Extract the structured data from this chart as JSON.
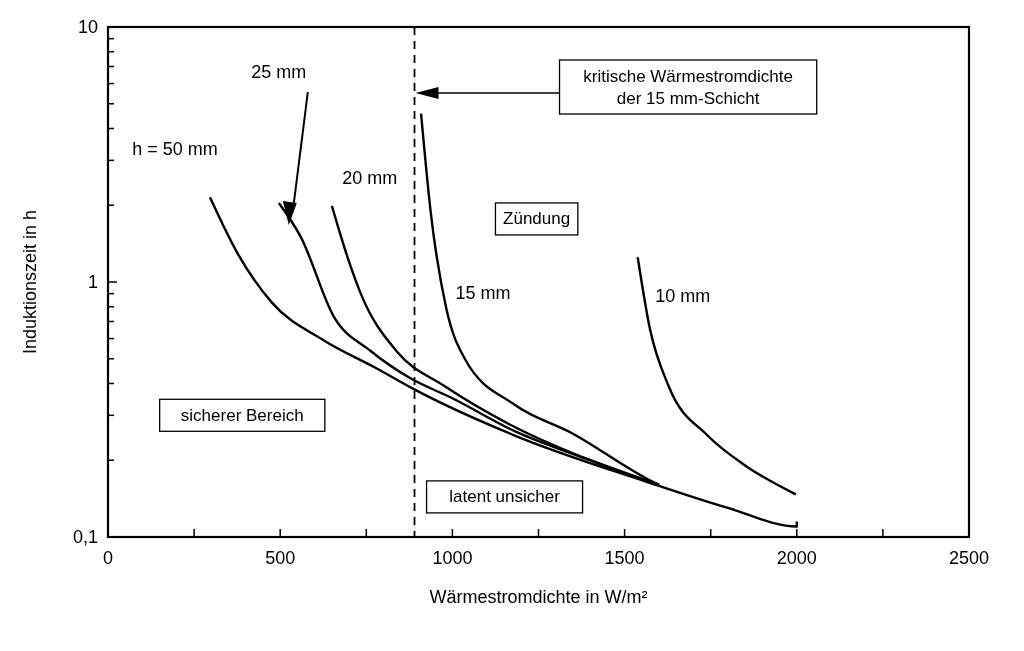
{
  "chart_data": {
    "type": "line",
    "xlabel": "Wärmestromdichte in W/m²",
    "ylabel": "Induktionszeit in h",
    "log": "y",
    "grid": false,
    "line_style": "solid",
    "xlim": [
      0,
      2500
    ],
    "xticks": [
      0,
      {
        "value": 250,
        "label": null
      },
      500,
      {
        "value": 750,
        "label": null
      },
      1000,
      {
        "value": 1250,
        "label": null
      },
      1500,
      {
        "value": 1750,
        "label": null
      },
      2000,
      {
        "value": 2250,
        "label": null
      },
      2500
    ],
    "ylim": [
      0.1,
      10
    ],
    "yticks": [
      {
        "value": 0.1,
        "label": "0,1"
      },
      {
        "value": 0.2,
        "label": null
      },
      {
        "value": 0.3,
        "label": null
      },
      {
        "value": 0.4,
        "label": null
      },
      {
        "value": 0.5,
        "label": null
      },
      {
        "value": 0.6,
        "label": null
      },
      {
        "value": 0.7,
        "label": null
      },
      {
        "value": 0.8,
        "label": null
      },
      {
        "value": 0.9,
        "label": null
      },
      1,
      {
        "value": 2,
        "label": null
      },
      {
        "value": 3,
        "label": null
      },
      {
        "value": 4,
        "label": null
      },
      {
        "value": 5,
        "label": null
      },
      {
        "value": 6,
        "label": null
      },
      {
        "value": 7,
        "label": null
      },
      {
        "value": 8,
        "label": null
      },
      {
        "value": 9,
        "label": null
      },
      10
    ],
    "series": [
      {
        "name": "h = 50 mm",
        "color": "#000000",
        "x": [
          296,
          377,
          476,
          627,
          778,
          888,
          1181,
          1562,
          1800,
          2000,
          2000
        ],
        "values": [
          2.15,
          1.29,
          0.83,
          0.59,
          0.46,
          0.38,
          0.25,
          0.165,
          0.13,
          0.11,
          0.115
        ]
      },
      {
        "name": "25 mm",
        "color": "#000000",
        "x": [
          496,
          560,
          656,
          760,
          877,
          1000,
          1181,
          1400,
          1600
        ],
        "values": [
          2.04,
          1.5,
          0.73,
          0.54,
          0.42,
          0.35,
          0.26,
          0.2,
          0.16
        ]
      },
      {
        "name": "20 mm",
        "color": "#000000",
        "x": [
          650,
          700,
          737,
          838,
          978,
          1181,
          1400,
          1600
        ],
        "values": [
          1.99,
          1.2,
          0.88,
          0.535,
          0.39,
          0.27,
          0.2,
          0.16
        ]
      },
      {
        "name": "15 mm",
        "color": "#000000",
        "x": [
          909,
          937,
          982,
          1036,
          1181,
          1350,
          1562,
          1600
        ],
        "values": [
          4.57,
          1.88,
          0.79,
          0.5,
          0.33,
          0.254,
          0.17,
          0.16
        ]
      },
      {
        "name": "10 mm",
        "color": "#000000",
        "x": [
          1538,
          1573,
          1628,
          1741,
          1852,
          1997
        ],
        "values": [
          1.25,
          0.66,
          0.39,
          0.25,
          0.19,
          0.147
        ]
      }
    ],
    "ref_lines": [
      {
        "axis": "x",
        "value": 890,
        "line_style": "dashed",
        "color": "#000000"
      }
    ],
    "annotations": [
      "kritische Wärmestromdichte\nder 15 mm-Schicht",
      "Zündung",
      "sicherer Bereich",
      "latent unsicher"
    ]
  }
}
